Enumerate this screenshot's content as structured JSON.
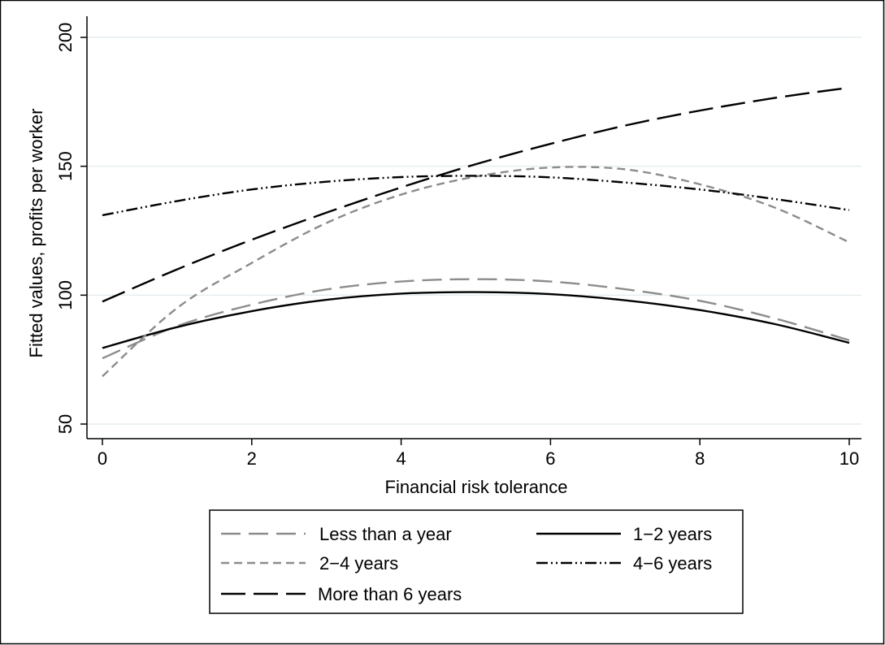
{
  "chart_data": {
    "type": "line",
    "title": "",
    "xlabel": "Financial risk tolerance",
    "ylabel": "Fitted values, profits per worker",
    "xlim": [
      0,
      10
    ],
    "ylim": [
      50,
      200
    ],
    "xticks": [
      0,
      2,
      4,
      6,
      8,
      10
    ],
    "yticks": [
      50,
      100,
      150,
      200
    ],
    "grid": "horizontal",
    "legend_position": "bottom",
    "x": [
      0,
      1,
      2,
      3,
      4,
      5,
      6,
      7,
      8,
      9,
      10
    ],
    "series": [
      {
        "name": "Less than a year",
        "color": "#8c8c8c",
        "values": [
          75.5,
          88.0,
          96.3,
          102.2,
          105.3,
          106.2,
          105.3,
          102.3,
          97.8,
          91.0,
          82.5
        ]
      },
      {
        "name": "1−2 years",
        "color": "#000000",
        "values": [
          79.5,
          87.6,
          93.8,
          98.2,
          100.6,
          101.2,
          100.4,
          98.0,
          94.2,
          88.8,
          81.5
        ]
      },
      {
        "name": "2−4 years",
        "color": "#8c8c8c",
        "values": [
          68.5,
          95.0,
          112.5,
          128.0,
          139.0,
          146.0,
          149.5,
          148.8,
          143.0,
          134.0,
          120.5
        ]
      },
      {
        "name": "4−6 years",
        "color": "#000000",
        "values": [
          131.0,
          136.5,
          141.0,
          144.0,
          145.8,
          146.3,
          145.7,
          143.7,
          141.0,
          137.3,
          133.0
        ]
      },
      {
        "name": "More than 6 years",
        "color": "#000000",
        "values": [
          97.5,
          110.0,
          121.5,
          132.0,
          141.8,
          150.8,
          158.7,
          165.8,
          171.6,
          176.5,
          180.5
        ]
      }
    ]
  }
}
